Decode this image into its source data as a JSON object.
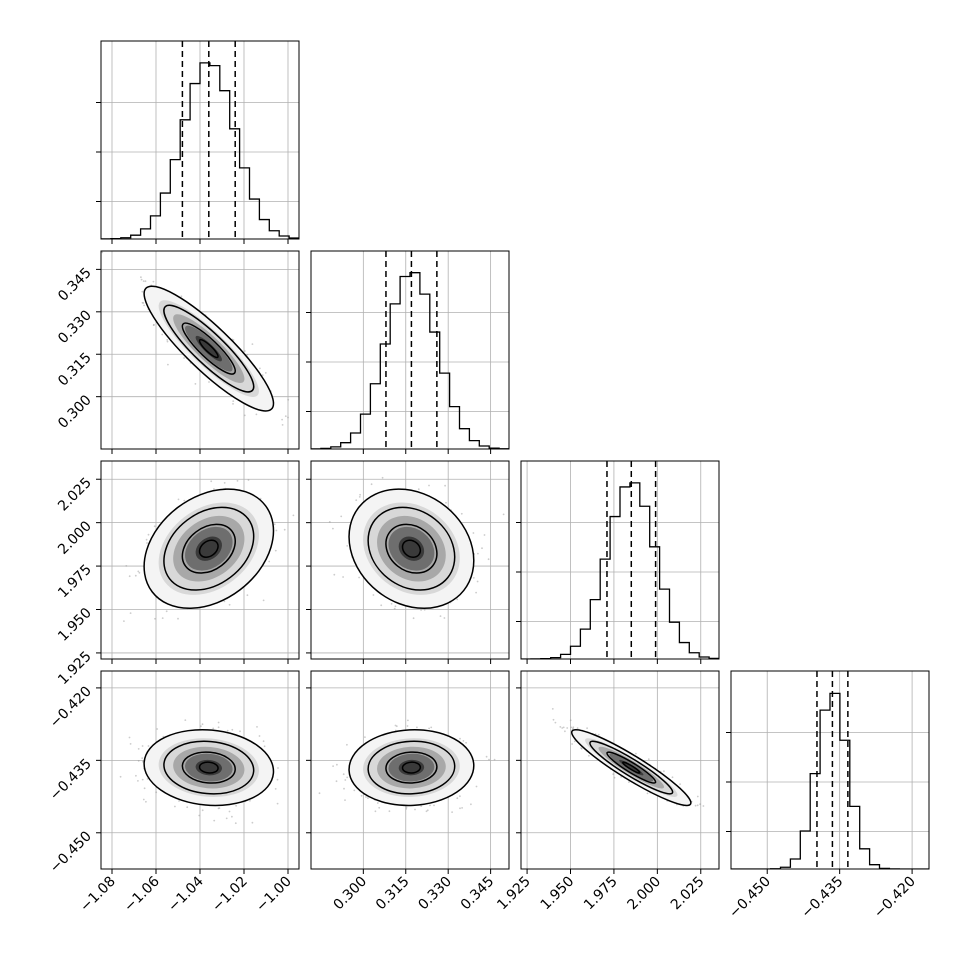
{
  "chart_data": {
    "type": "corner",
    "parameters": 4,
    "grid": true,
    "histogram_style": "step",
    "quantile_line_style": "dashed",
    "contour_levels": 3,
    "axes": [
      {
        "range": [
          -1.085,
          -0.995
        ],
        "ticks": [
          -1.08,
          -1.06,
          -1.04,
          -1.02,
          -1.0
        ],
        "tick_labels": [
          "−1.08",
          "−1.06",
          "−1.04",
          "−1.02",
          "−1.00"
        ]
      },
      {
        "range": [
          0.2815,
          0.3515
        ],
        "ticks": [
          0.3,
          0.315,
          0.33,
          0.345
        ],
        "tick_labels": [
          "0.300",
          "0.315",
          "0.330",
          "0.345"
        ]
      },
      {
        "range": [
          1.9215,
          2.0355
        ],
        "ticks": [
          1.925,
          1.95,
          1.975,
          2.0,
          2.025
        ],
        "tick_labels": [
          "1.925",
          "1.950",
          "1.975",
          "2.000",
          "2.025"
        ]
      },
      {
        "range": [
          -0.4575,
          -0.4165
        ],
        "ticks": [
          -0.45,
          -0.435,
          -0.42
        ],
        "tick_labels": [
          "−0.450",
          "−0.435",
          "−0.420"
        ]
      }
    ],
    "marginals": [
      {
        "mean": -1.036,
        "sd": 0.012,
        "quantiles": [
          -1.048,
          -1.036,
          -1.024
        ]
      },
      {
        "mean": 0.317,
        "sd": 0.009,
        "quantiles": [
          0.308,
          0.317,
          0.326
        ]
      },
      {
        "mean": 1.985,
        "sd": 0.014,
        "quantiles": [
          1.971,
          1.985,
          1.999
        ]
      },
      {
        "mean": -0.4365,
        "sd": 0.0032,
        "quantiles": [
          -0.4397,
          -0.4365,
          -0.4333
        ]
      }
    ],
    "correlations": [
      {
        "pair": [
          0,
          1
        ],
        "rho": -0.88
      },
      {
        "pair": [
          0,
          2
        ],
        "rho": 0.3
      },
      {
        "pair": [
          1,
          2
        ],
        "rho": -0.2
      },
      {
        "pair": [
          0,
          3
        ],
        "rho": -0.1
      },
      {
        "pair": [
          1,
          3
        ],
        "rho": 0.05
      },
      {
        "pair": [
          2,
          3
        ],
        "rho": -0.93
      }
    ]
  }
}
